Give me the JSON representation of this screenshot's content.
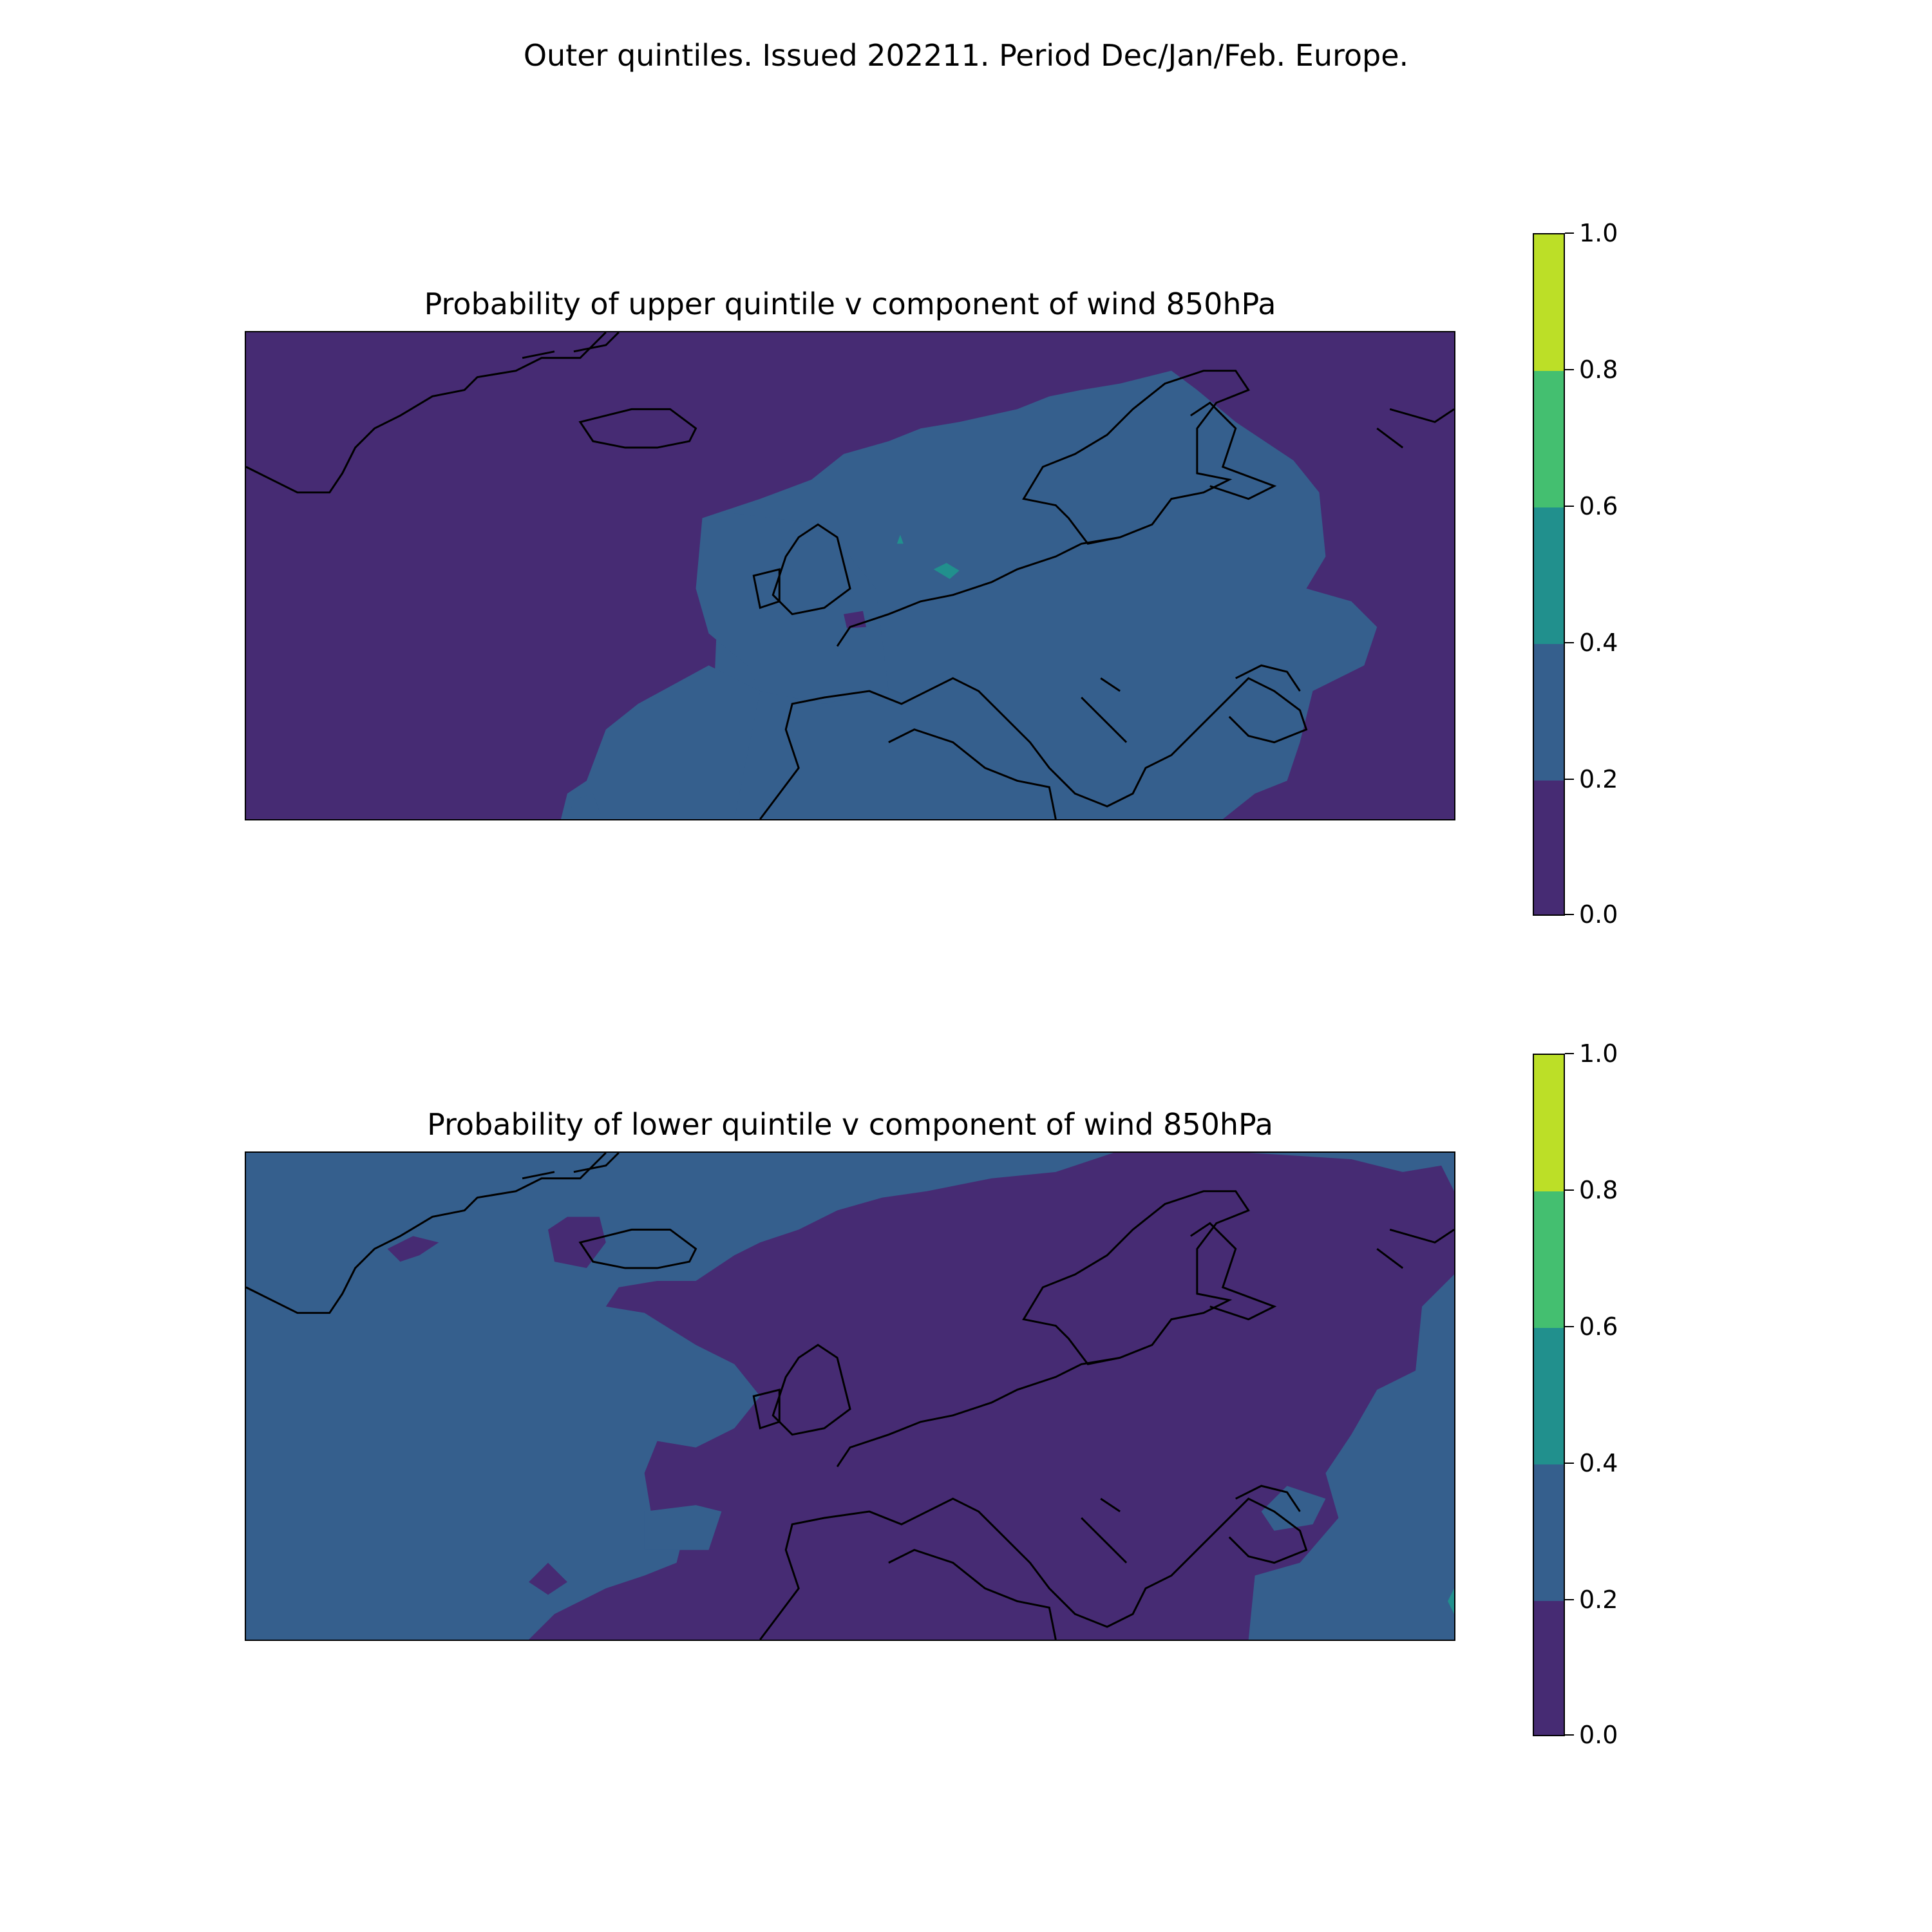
{
  "figure": {
    "suptitle": "Outer quintiles. Issued 202211. Period Dec/Jan/Feb. Europe."
  },
  "colors": {
    "level_0_0.2": "#462b73",
    "level_0.2_0.4": "#355f8d",
    "level_0.4_0.6": "#21908d",
    "level_0.6_0.8": "#44bf70",
    "level_0.8_1.0": "#bcdf27",
    "coastline": "#000000"
  },
  "chart_data": [
    {
      "type": "heatmap",
      "title": "Probability of upper quintile v component of wind 850hPa",
      "region": "Europe",
      "dominant_value": "0.0–0.2 over the Atlantic, Greenland and Russia",
      "secondary_value": "0.2–0.4 over western/central Europe, Scandinavia and the Mediterranean",
      "colorbar": {
        "min": 0.0,
        "max": 1.0,
        "levels": [
          0.0,
          0.2,
          0.4,
          0.6,
          0.8,
          1.0
        ],
        "tick_labels": [
          "0.0",
          "0.2",
          "0.4",
          "0.6",
          "0.8",
          "1.0"
        ]
      }
    },
    {
      "type": "heatmap",
      "title": "Probability of lower quintile v component of wind 850hPa",
      "region": "Europe",
      "dominant_value": "0.2–0.4 over the Atlantic and Greenland",
      "secondary_value": "0.0–0.2 over most of Europe and Russia",
      "colorbar": {
        "min": 0.0,
        "max": 1.0,
        "levels": [
          0.0,
          0.2,
          0.4,
          0.6,
          0.8,
          1.0
        ],
        "tick_labels": [
          "0.0",
          "0.2",
          "0.4",
          "0.6",
          "0.8",
          "1.0"
        ]
      }
    }
  ]
}
